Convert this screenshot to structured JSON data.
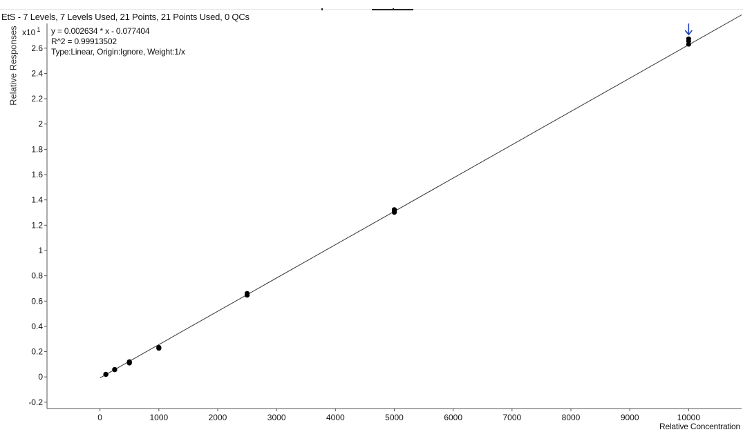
{
  "header": {
    "title": "EtS - 7 Levels, 7 Levels Used, 21 Points, 21 Points Used, 0 QCs"
  },
  "fit_info": {
    "equation": "y = 0.002634 * x  - 0.077404",
    "r_squared": "R^2 = 0.99913502",
    "fit_type": "Type:Linear, Origin:Ignore, Weight:1/x"
  },
  "colors": {
    "points": "#000000",
    "fit_line": "#444444",
    "outlier_arrow": "#1f3fbf"
  },
  "chart_data": {
    "type": "scatter",
    "title": "EtS - 7 Levels, 7 Levels Used, 21 Points, 21 Points Used, 0 QCs",
    "xlabel": "Relative Concentration",
    "ylabel": "Relative Responses",
    "y_multiplier": {
      "base": "x10",
      "exponent": "1"
    },
    "xlim": [
      -900,
      10900
    ],
    "ylim": [
      -0.25,
      2.85
    ],
    "x_ticks": [
      0,
      1000,
      2000,
      3000,
      4000,
      5000,
      6000,
      7000,
      8000,
      9000,
      10000
    ],
    "y_ticks": [
      -0.2,
      0,
      0.2,
      0.4,
      0.6,
      0.8,
      1,
      1.2,
      1.4,
      1.6,
      1.8,
      2,
      2.2,
      2.4,
      2.6
    ],
    "y_tick_labels": [
      "-0.2",
      "0",
      "0.2",
      "0.4",
      "0.6",
      "0.8",
      "1",
      "1.2",
      "1.4",
      "1.6",
      "1.8",
      "2",
      "2.2",
      "2.4",
      "2.6"
    ],
    "grid": false,
    "fit_line": {
      "slope": 0.0002634,
      "intercept": -0.0077404,
      "x_range": [
        0,
        10900
      ]
    },
    "series": [
      {
        "points": [
          {
            "x": 100,
            "y": 0.018
          },
          {
            "x": 100,
            "y": 0.02
          },
          {
            "x": 100,
            "y": 0.023
          },
          {
            "x": 250,
            "y": 0.055
          },
          {
            "x": 250,
            "y": 0.058
          },
          {
            "x": 250,
            "y": 0.061
          },
          {
            "x": 500,
            "y": 0.108
          },
          {
            "x": 500,
            "y": 0.115
          },
          {
            "x": 500,
            "y": 0.122
          },
          {
            "x": 1000,
            "y": 0.225
          },
          {
            "x": 1000,
            "y": 0.23
          },
          {
            "x": 1000,
            "y": 0.235
          },
          {
            "x": 2500,
            "y": 0.645
          },
          {
            "x": 2500,
            "y": 0.655
          },
          {
            "x": 2500,
            "y": 0.662
          },
          {
            "x": 5000,
            "y": 1.3
          },
          {
            "x": 5000,
            "y": 1.313
          },
          {
            "x": 5000,
            "y": 1.325
          },
          {
            "x": 10000,
            "y": 2.63
          },
          {
            "x": 10000,
            "y": 2.655
          },
          {
            "x": 10000,
            "y": 2.675
          }
        ]
      }
    ],
    "outlier_marker": {
      "x": 10000,
      "y": 2.675,
      "icon": "down-arrow-icon"
    }
  }
}
